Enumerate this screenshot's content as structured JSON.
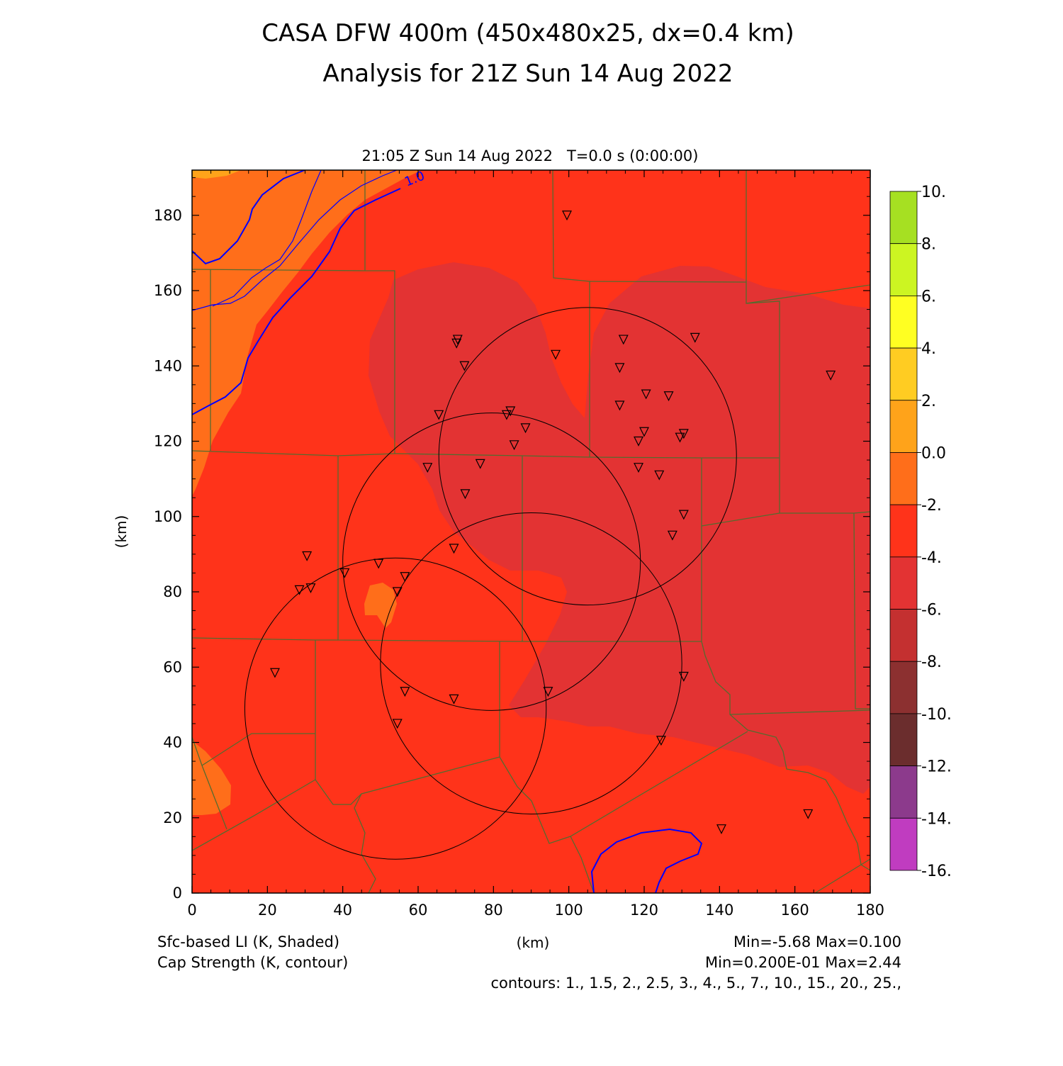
{
  "title": {
    "line1": "CASA DFW 400m (450x480x25, dx=0.4 km)",
    "line2": "Analysis for 21Z Sun 14 Aug 2022"
  },
  "valid_time": "21:05 Z Sun 14 Aug 2022   T=0.0 s (0:00:00)",
  "axes": {
    "x_label": "(km)",
    "y_label": "(km)",
    "x_range": [
      0,
      180
    ],
    "y_range": [
      0,
      192
    ],
    "x_ticks": [
      "0",
      "20",
      "40",
      "60",
      "80",
      "100",
      "120",
      "140",
      "160",
      "180"
    ],
    "y_ticks": [
      "0",
      "20",
      "40",
      "60",
      "80",
      "100",
      "120",
      "140",
      "160",
      "180"
    ]
  },
  "colorbar": {
    "labels": [
      "10.",
      "8.",
      "6.",
      "4.",
      "2.",
      "0.0",
      "-2.",
      "-4.",
      "-6.",
      "-8.",
      "-10.",
      "-12.",
      "-14.",
      "-16."
    ],
    "colors": [
      "#a6e022",
      "#ccf522",
      "#ffff22",
      "#ffcc22",
      "#ffa31a",
      "#ff6e1a",
      "#ff331a",
      "#e33333",
      "#c43030",
      "#8c3030",
      "#6b2d2d",
      "#8c3a8c",
      "#c03cc0",
      "#dd44dd"
    ]
  },
  "field_colors": {
    "li_neg2_0": "#ff6e1a",
    "li_neg4_neg2": "#ff331a",
    "li_neg6_neg4": "#e33333",
    "cap_contour": "#0000ff",
    "county_lines": "#556b2f",
    "radar_rings": "#000000"
  },
  "contour_label": "1.0",
  "footer": {
    "left1": "Sfc-based LI (K, Shaded)",
    "left2": "Cap Strength (K, contour)",
    "center": "(km)",
    "right1": "Min=-5.68 Max=0.100",
    "right2": "Min=0.200E-01 Max=2.44",
    "right3": "contours: 1., 1.5, 2., 2.5, 3., 4., 5., 7., 10., 15., 20., 25.,"
  },
  "radar_rings": [
    {
      "cx": 105,
      "cy": 116,
      "r": 39.5
    },
    {
      "cx": 79.5,
      "cy": 88,
      "r": 39.5
    },
    {
      "cx": 90,
      "cy": 61,
      "r": 40
    },
    {
      "cx": 54,
      "cy": 49,
      "r": 40
    }
  ],
  "stations": [
    [
      99.5,
      180
    ],
    [
      70.5,
      147
    ],
    [
      70.2,
      146
    ],
    [
      72.3,
      140
    ],
    [
      96.5,
      143
    ],
    [
      114.5,
      147
    ],
    [
      133.5,
      147.5
    ],
    [
      113.5,
      139.5
    ],
    [
      169.5,
      137.5
    ],
    [
      120.5,
      132.5
    ],
    [
      126.5,
      132
    ],
    [
      113.5,
      129.5
    ],
    [
      65.5,
      127
    ],
    [
      83.5,
      127
    ],
    [
      84.5,
      128
    ],
    [
      88.5,
      123.5
    ],
    [
      120,
      122.5
    ],
    [
      130.5,
      122
    ],
    [
      118.5,
      120
    ],
    [
      129.5,
      121
    ],
    [
      85.5,
      119
    ],
    [
      62.5,
      113
    ],
    [
      76.5,
      114
    ],
    [
      118.5,
      113
    ],
    [
      124,
      111
    ],
    [
      72.5,
      106
    ],
    [
      130.5,
      100.5
    ],
    [
      127.5,
      95
    ],
    [
      69.5,
      91.5
    ],
    [
      30.5,
      89.5
    ],
    [
      49.5,
      87.5
    ],
    [
      40.5,
      85
    ],
    [
      56.5,
      84
    ],
    [
      28.5,
      80.5
    ],
    [
      31.5,
      81
    ],
    [
      54.5,
      80
    ],
    [
      22,
      58.5
    ],
    [
      130.5,
      57.5
    ],
    [
      56.5,
      53.5
    ],
    [
      94.5,
      53.5
    ],
    [
      69.5,
      51.5
    ],
    [
      54.5,
      45
    ],
    [
      124.5,
      40.5
    ],
    [
      163.5,
      21
    ],
    [
      140.5,
      17
    ]
  ]
}
